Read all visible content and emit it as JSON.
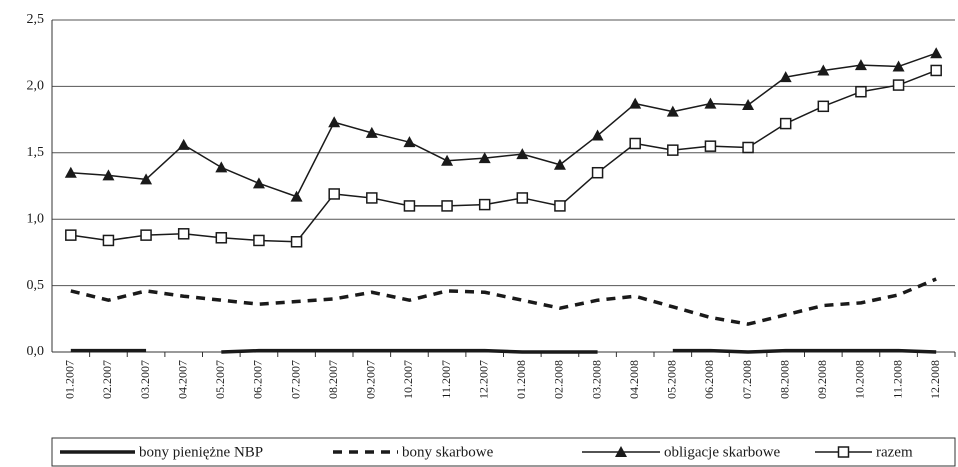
{
  "chart_data": {
    "type": "line",
    "categories": [
      "01.2007",
      "02.2007",
      "03.2007",
      "04.2007",
      "05.2007",
      "06.2007",
      "07.2007",
      "08.2007",
      "09.2007",
      "10.2007",
      "11.2007",
      "12.2007",
      "01.2008",
      "02.2008",
      "03.2008",
      "04.2008",
      "05.2008",
      "06.2008",
      "07.2008",
      "08.2008",
      "09.2008",
      "10.2008",
      "11.2008",
      "12.2008"
    ],
    "series": [
      {
        "name": "bony pieniężne NBP",
        "color": "#1a1a1a",
        "style": "solid",
        "marker": "none",
        "values": [
          0.01,
          0.01,
          0.01,
          null,
          0.0,
          0.01,
          0.01,
          0.01,
          0.01,
          0.01,
          0.01,
          0.01,
          0.0,
          0.0,
          0.0,
          null,
          0.01,
          0.01,
          0.0,
          0.01,
          0.01,
          0.01,
          0.01,
          0.0
        ]
      },
      {
        "name": "bony skarbowe",
        "color": "#1a1a1a",
        "style": "dashed",
        "marker": "none",
        "values": [
          0.46,
          0.39,
          0.46,
          0.42,
          0.39,
          0.36,
          0.38,
          0.4,
          0.45,
          0.39,
          0.46,
          0.45,
          0.39,
          0.33,
          0.39,
          0.42,
          0.34,
          0.26,
          0.21,
          0.28,
          0.35,
          0.37,
          0.43,
          0.55
        ]
      },
      {
        "name": "obligacje skarbowe",
        "color": "#1a1a1a",
        "style": "thin",
        "marker": "triangle",
        "values": [
          1.35,
          1.33,
          1.3,
          1.56,
          1.39,
          1.27,
          1.17,
          1.73,
          1.65,
          1.58,
          1.44,
          1.46,
          1.49,
          1.41,
          1.63,
          1.87,
          1.81,
          1.87,
          1.86,
          2.07,
          2.12,
          2.16,
          2.15,
          2.25
        ]
      },
      {
        "name": "razem",
        "color": "#1a1a1a",
        "style": "thin",
        "marker": "square",
        "values": [
          0.88,
          0.84,
          0.88,
          0.89,
          0.86,
          0.84,
          0.83,
          1.19,
          1.16,
          1.1,
          1.1,
          1.11,
          1.16,
          1.1,
          1.35,
          1.57,
          1.52,
          1.55,
          1.54,
          1.72,
          1.85,
          1.96,
          2.01,
          2.12
        ]
      }
    ],
    "ylim": [
      0,
      2.5
    ],
    "yticks": [
      {
        "value": 0,
        "label": "0,0"
      },
      {
        "value": 0.5,
        "label": "0,5"
      },
      {
        "value": 1,
        "label": "1,0"
      },
      {
        "value": 1.5,
        "label": "1,5"
      },
      {
        "value": 2,
        "label": "2,0"
      },
      {
        "value": 2.5,
        "label": "2,5"
      }
    ],
    "grid": true,
    "legend": "bottom"
  }
}
